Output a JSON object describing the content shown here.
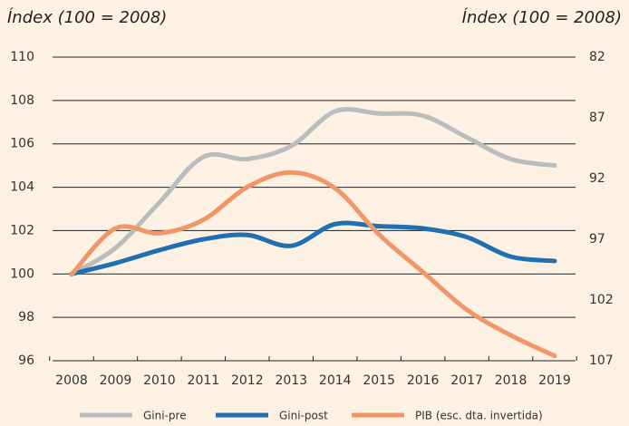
{
  "chart_data": {
    "type": "line",
    "y_label": "Índex (100 = 2008)",
    "y2_label": "Índex (100 = 2008)",
    "x": [
      "2008",
      "2009",
      "2010",
      "2011",
      "2012",
      "2013",
      "2014",
      "2015",
      "2016",
      "2017",
      "2018",
      "2019"
    ],
    "ylim": [
      96,
      110
    ],
    "yticks": [
      96,
      98,
      100,
      102,
      104,
      106,
      108,
      110
    ],
    "y2lim": [
      107,
      82
    ],
    "y2ticks": [
      82,
      87,
      92,
      97,
      102,
      107
    ],
    "y2_inverted": true,
    "grid": true,
    "legend": "bottom",
    "series": [
      {
        "name": "Gini-pre",
        "color": "#b9bdbd",
        "values": [
          100,
          101.2,
          103.3,
          105.4,
          105.3,
          105.9,
          107.5,
          107.4,
          107.3,
          106.3,
          105.3,
          105.0
        ]
      },
      {
        "name": "Gini-post",
        "color": "#1f6fb2",
        "values": [
          100,
          100.5,
          101.1,
          101.6,
          101.8,
          101.3,
          102.3,
          102.2,
          102.1,
          101.7,
          100.8,
          100.6
        ]
      },
      {
        "name": "PIB (esc. dta. invertida)",
        "color": "#f0976a",
        "axis": "y2",
        "values": [
          99.9,
          96.1,
          96.5,
          95.4,
          92.7,
          91.5,
          92.8,
          96.6,
          99.7,
          102.8,
          104.9,
          106.6
        ]
      }
    ]
  }
}
